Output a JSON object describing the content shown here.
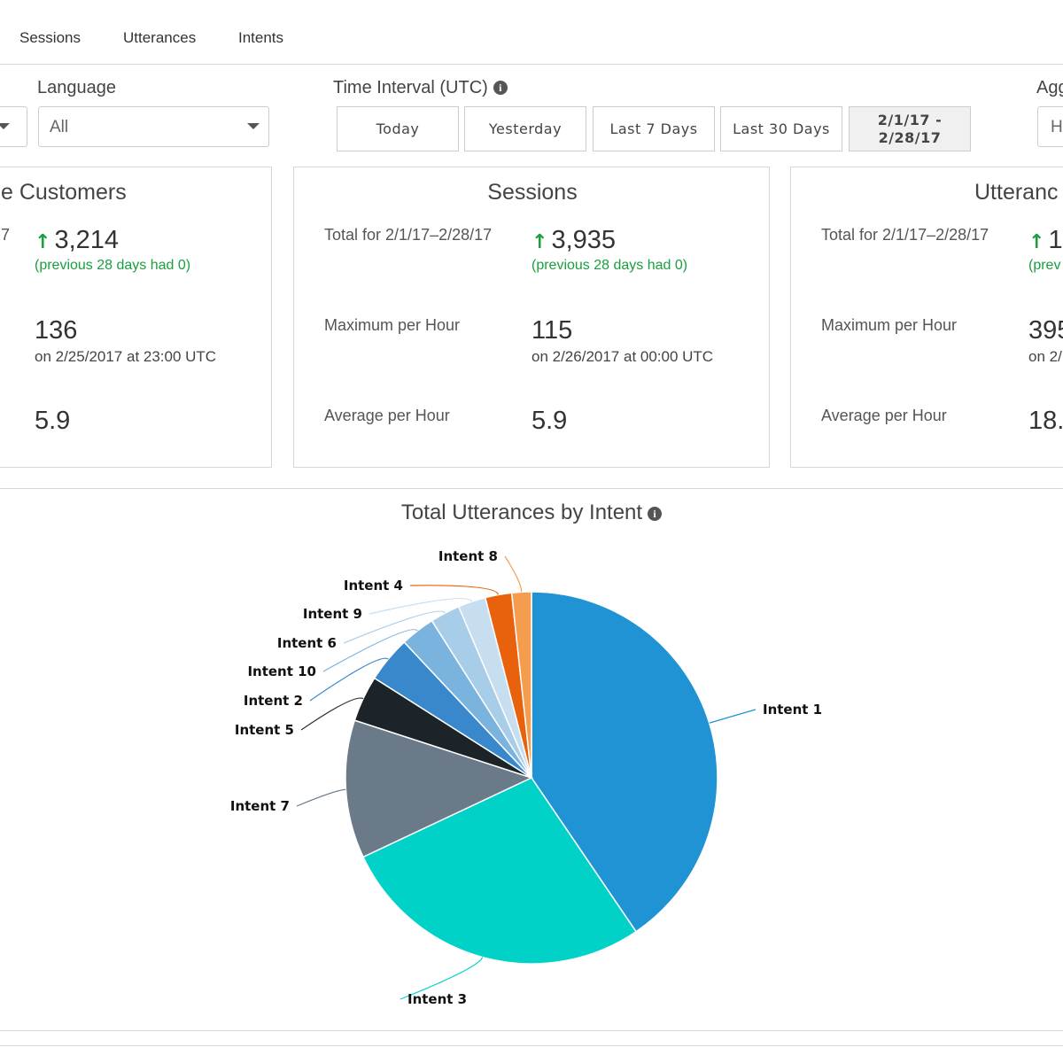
{
  "tabs": [
    "Sessions",
    "Utterances",
    "Intents"
  ],
  "filters": {
    "language_label": "Language",
    "language_value": "All",
    "time_label": "Time Interval (UTC)",
    "time_buttons": [
      "Today",
      "Yesterday",
      "Last 7 Days",
      "Last 30 Days"
    ],
    "time_custom_line1": "2/1/17 -",
    "time_custom_line2": "2/28/17",
    "aggregation_label": "Agg",
    "aggregation_value": "H"
  },
  "cards": {
    "customers": {
      "title": "e Customers",
      "total_label_fragment": "7",
      "total": "3,214",
      "previous": "(previous 28 days had 0)",
      "max": "136",
      "max_when": "on 2/25/2017 at 23:00 UTC",
      "avg": "5.9"
    },
    "sessions": {
      "title": "Sessions",
      "total_label": "Total for 2/1/17–2/28/17",
      "total": "3,935",
      "previous": "(previous 28 days had 0)",
      "max_label": "Maximum per Hour",
      "max": "115",
      "max_when": "on 2/26/2017 at 00:00 UTC",
      "avg_label": "Average per Hour",
      "avg": "5.9"
    },
    "utterances": {
      "title": "Utteranc",
      "total_label": "Total for 2/1/17–2/28/17",
      "total": "1",
      "previous": "(prev",
      "max_label": "Maximum per Hour",
      "max": "395",
      "max_when": "on 2/",
      "avg_label": "Average per Hour",
      "avg": "18."
    }
  },
  "chart_title": "Total Utterances by Intent",
  "chart_data": {
    "type": "pie",
    "title": "Total Utterances by Intent",
    "slices": [
      {
        "label": "Intent 1",
        "value": 40.5,
        "color": "#1f93d3"
      },
      {
        "label": "Intent 3",
        "value": 27.5,
        "color": "#00d2c8"
      },
      {
        "label": "Intent 7",
        "value": 12.0,
        "color": "#6b7a89"
      },
      {
        "label": "Intent 5",
        "value": 4.0,
        "color": "#1c2329"
      },
      {
        "label": "Intent 2",
        "value": 4.0,
        "color": "#3a88cc"
      },
      {
        "label": "Intent 10",
        "value": 3.0,
        "color": "#7ab3de"
      },
      {
        "label": "Intent 6",
        "value": 2.6,
        "color": "#a8cde9"
      },
      {
        "label": "Intent 9",
        "value": 2.4,
        "color": "#c7ddf0"
      },
      {
        "label": "Intent 4",
        "value": 2.3,
        "color": "#e8620e"
      },
      {
        "label": "Intent 8",
        "value": 1.7,
        "color": "#f59c4f"
      }
    ]
  }
}
